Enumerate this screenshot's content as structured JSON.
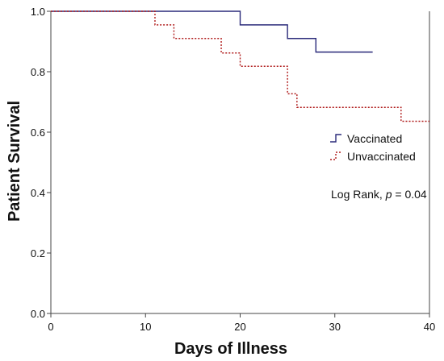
{
  "chart_data": {
    "type": "line",
    "step": true,
    "xlabel": "Days of Illness",
    "ylabel": "Patient Survival",
    "xlim": [
      0,
      40
    ],
    "ylim": [
      0.0,
      1.0
    ],
    "x_ticks": [
      "0",
      "10",
      "20",
      "30",
      "40"
    ],
    "y_ticks": [
      "0.0",
      "0.2",
      "0.4",
      "0.6",
      "0.8",
      "1.0"
    ],
    "grid": false,
    "legend_position": "right",
    "annotation": {
      "prefix": "Log Rank, ",
      "p_symbol": "p",
      "suffix": " = 0.04"
    },
    "series": [
      {
        "name": "Vaccinated",
        "color": "#2a2a7a",
        "dash": "solid",
        "x": [
          0,
          20,
          25,
          28,
          34
        ],
        "y": [
          1.0,
          0.955,
          0.91,
          0.865,
          0.865
        ]
      },
      {
        "name": "Unvaccinated",
        "color": "#b01c1c",
        "dash": "dotted",
        "x": [
          0,
          11,
          13,
          18,
          20,
          25,
          26,
          37,
          40
        ],
        "y": [
          1.0,
          0.955,
          0.91,
          0.862,
          0.818,
          0.727,
          0.682,
          0.636,
          0.636
        ]
      }
    ]
  }
}
